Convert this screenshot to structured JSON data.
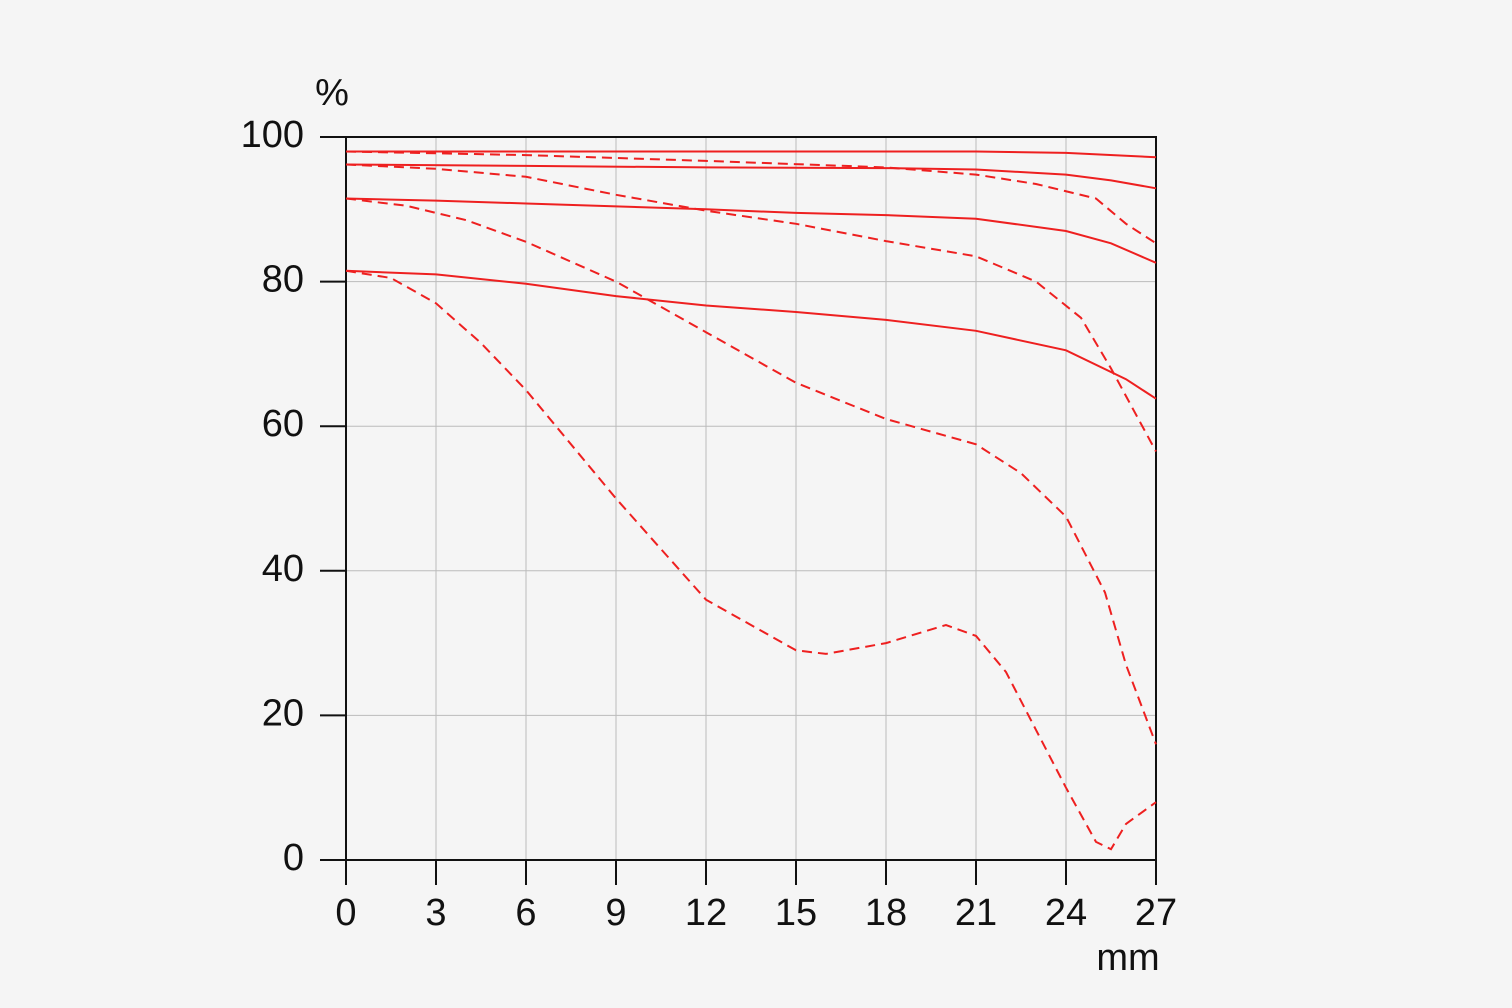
{
  "chart_data": {
    "type": "line",
    "ylabel": "%",
    "xlabel": "mm",
    "xlim": [
      0,
      27
    ],
    "xticks": [
      0,
      3,
      6,
      9,
      12,
      15,
      18,
      21,
      24,
      27
    ],
    "ylim": [
      0,
      100
    ],
    "yticks": [
      0,
      20,
      40,
      60,
      80,
      100
    ],
    "grid": true,
    "series": [
      {
        "color": "#ee2020",
        "dashed": false,
        "x": [
          0,
          6,
          12,
          18,
          21,
          24,
          27
        ],
        "values": [
          98,
          98,
          98,
          98,
          98,
          97.8,
          97.2
        ]
      },
      {
        "color": "#ee2020",
        "dashed": false,
        "x": [
          0,
          6,
          12,
          18,
          21,
          24,
          25.5,
          27
        ],
        "values": [
          96.2,
          96,
          95.8,
          95.7,
          95.5,
          94.8,
          94,
          92.9
        ]
      },
      {
        "color": "#ee2020",
        "dashed": false,
        "x": [
          0,
          3,
          6,
          9,
          12,
          15,
          18,
          21,
          24,
          25.5,
          27
        ],
        "values": [
          91.5,
          91.2,
          90.8,
          90.4,
          90,
          89.5,
          89.2,
          88.7,
          87,
          85.3,
          82.6
        ]
      },
      {
        "color": "#ee2020",
        "dashed": false,
        "x": [
          0,
          3,
          6,
          9,
          12,
          15,
          18,
          21,
          24,
          26,
          27
        ],
        "values": [
          81.5,
          81,
          79.7,
          78,
          76.7,
          75.8,
          74.7,
          73.2,
          70.5,
          66.5,
          63.8
        ]
      },
      {
        "color": "#ee2020",
        "dashed": true,
        "x": [
          0,
          6,
          12,
          18,
          21,
          23,
          25,
          26,
          27
        ],
        "values": [
          98,
          97.5,
          96.7,
          95.8,
          94.8,
          93.5,
          91.5,
          88,
          85.3
        ]
      },
      {
        "color": "#ee2020",
        "dashed": true,
        "x": [
          0,
          3,
          6,
          9,
          12,
          15,
          18,
          21,
          23,
          24.5,
          25.5,
          27
        ],
        "values": [
          96.2,
          95.6,
          94.5,
          92,
          89.8,
          88,
          85.6,
          83.5,
          80,
          75,
          68,
          56.5
        ]
      },
      {
        "color": "#ee2020",
        "dashed": true,
        "x": [
          0,
          2,
          4,
          6,
          9,
          12,
          15,
          18,
          21,
          22.5,
          24,
          25.3,
          26,
          27
        ],
        "values": [
          91.5,
          90.5,
          88.5,
          85.5,
          80,
          73,
          66,
          61,
          57.5,
          53.5,
          47.5,
          37,
          27,
          16
        ]
      },
      {
        "color": "#ee2020",
        "dashed": true,
        "x": [
          0,
          1.5,
          3,
          4.5,
          6,
          9,
          12,
          15,
          16,
          18,
          20,
          21,
          22,
          23,
          24,
          25,
          25.5,
          26,
          27
        ],
        "values": [
          81.5,
          80.5,
          77,
          71.5,
          65,
          50,
          36,
          29,
          28.5,
          30,
          32.5,
          31,
          26,
          18,
          10,
          2.5,
          1.5,
          5,
          8
        ]
      }
    ]
  }
}
